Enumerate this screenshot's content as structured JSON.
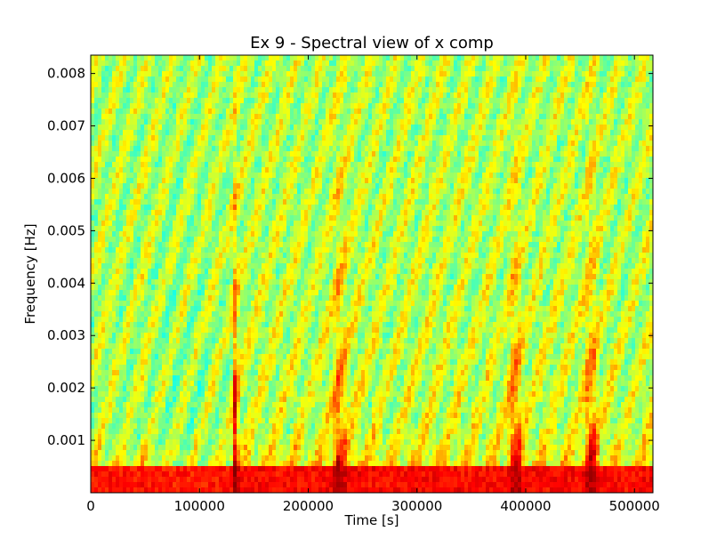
{
  "chart_data": {
    "type": "heatmap",
    "title": "Ex 9 - Spectral view of x comp",
    "xlabel": "Time [s]",
    "ylabel": "Frequency [Hz]",
    "xlim": [
      0,
      517000
    ],
    "ylim": [
      0.0,
      0.00835
    ],
    "xticks": [
      0,
      100000,
      200000,
      300000,
      400000,
      500000
    ],
    "xtick_labels": [
      "0",
      "100000",
      "200000",
      "300000",
      "400000",
      "500000"
    ],
    "yticks": [
      0.001,
      0.002,
      0.003,
      0.004,
      0.005,
      0.006,
      0.007,
      0.008
    ],
    "ytick_labels": [
      "0.001",
      "0.002",
      "0.003",
      "0.004",
      "0.005",
      "0.006",
      "0.007",
      "0.008"
    ],
    "colormap": "jet",
    "grid": false,
    "features": {
      "low_frequency_band_below_hz": 0.0005,
      "strong_vertical_events_s": [
        133000,
        228000,
        390000,
        460000
      ],
      "quiet_region_s": [
        70000,
        110000
      ]
    }
  }
}
